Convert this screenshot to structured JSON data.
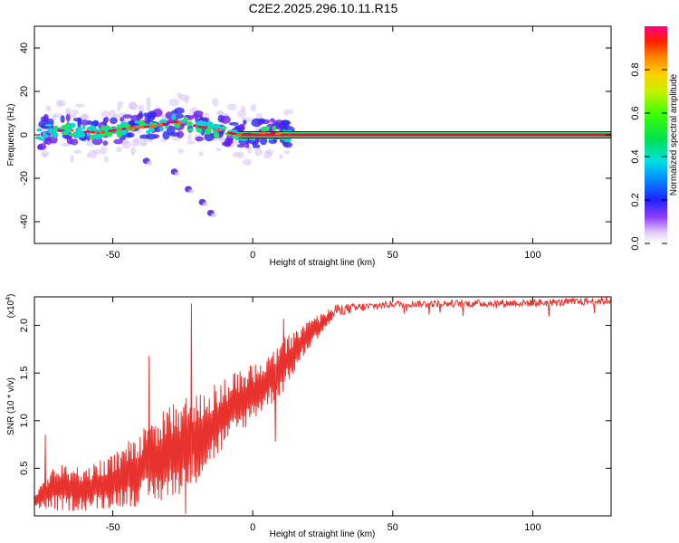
{
  "title": "C2E2.2025.296.10.11.R15",
  "colors": {
    "snr_line": "#e8322e",
    "ridge": "#e0104a"
  },
  "chart_data": [
    {
      "type": "heatmap",
      "xlabel": "Height of straight line (km)",
      "ylabel": "Frequency (Hz)",
      "xlim": [
        -78,
        128
      ],
      "ylim": [
        -50,
        50
      ],
      "xticks": [
        -50,
        0,
        50,
        100
      ],
      "yticks": [
        -40,
        -20,
        0,
        20,
        40
      ],
      "colorbar": {
        "label": "Normalized spectral amplitude",
        "range": [
          0,
          1
        ],
        "ticks": [
          0.0,
          0.2,
          0.4,
          0.6,
          0.8
        ]
      },
      "ridge": [
        {
          "x": -75,
          "f": 2
        },
        {
          "x": -65,
          "f": 2
        },
        {
          "x": -55,
          "f": 1
        },
        {
          "x": -45,
          "f": 3
        },
        {
          "x": -35,
          "f": 4
        },
        {
          "x": -28,
          "f": 6
        },
        {
          "x": -20,
          "f": 4
        },
        {
          "x": -12,
          "f": 2
        },
        {
          "x": -5,
          "f": 0
        },
        {
          "x": 5,
          "f": 1
        },
        {
          "x": 12,
          "f": 0
        },
        {
          "x": 128,
          "f": 0
        }
      ],
      "scatter_tail": [
        {
          "x": -38,
          "f": -12
        },
        {
          "x": -28,
          "f": -17
        },
        {
          "x": -23,
          "f": -25
        },
        {
          "x": -18,
          "f": -31
        },
        {
          "x": -15,
          "f": -36
        }
      ],
      "constant_band": {
        "x_start": -5,
        "x_end": 128,
        "f": 0
      }
    },
    {
      "type": "line",
      "xlabel": "Height of straight line (km)",
      "ylabel": "SNR (10 * v/v)",
      "y_multiplier": "(x10",
      "y_multiplier_exp": "4",
      "xlim": [
        -78,
        128
      ],
      "ylim": [
        0.0,
        2.3
      ],
      "xticks": [
        -50,
        0,
        50,
        100
      ],
      "yticks": [
        0.5,
        1.0,
        1.5,
        2.0
      ],
      "envelope": [
        {
          "x": -78,
          "lo": 0.08,
          "hi": 0.25
        },
        {
          "x": -70,
          "lo": 0.05,
          "hi": 0.55
        },
        {
          "x": -60,
          "lo": 0.05,
          "hi": 0.5
        },
        {
          "x": -50,
          "lo": 0.08,
          "hi": 0.65
        },
        {
          "x": -40,
          "lo": 0.1,
          "hi": 0.9
        },
        {
          "x": -30,
          "lo": 0.15,
          "hi": 1.15
        },
        {
          "x": -20,
          "lo": 0.35,
          "hi": 1.3
        },
        {
          "x": -10,
          "lo": 0.7,
          "hi": 1.45
        },
        {
          "x": 0,
          "lo": 1.0,
          "hi": 1.6
        },
        {
          "x": 10,
          "lo": 1.25,
          "hi": 1.85
        },
        {
          "x": 20,
          "lo": 1.75,
          "hi": 2.05
        },
        {
          "x": 30,
          "lo": 2.1,
          "hi": 2.22
        },
        {
          "x": 50,
          "lo": 2.19,
          "hi": 2.26
        },
        {
          "x": 80,
          "lo": 2.19,
          "hi": 2.27
        },
        {
          "x": 110,
          "lo": 2.2,
          "hi": 2.28
        },
        {
          "x": 128,
          "lo": 2.22,
          "hi": 2.3
        }
      ],
      "spikes": [
        {
          "x": -37,
          "y": 1.68
        },
        {
          "x": -22,
          "y": 2.23
        },
        {
          "x": -24,
          "y": 0.02
        },
        {
          "x": 8,
          "y": 0.78
        },
        {
          "x": 11,
          "y": 2.07
        },
        {
          "x": -74,
          "y": 0.85
        }
      ]
    }
  ]
}
